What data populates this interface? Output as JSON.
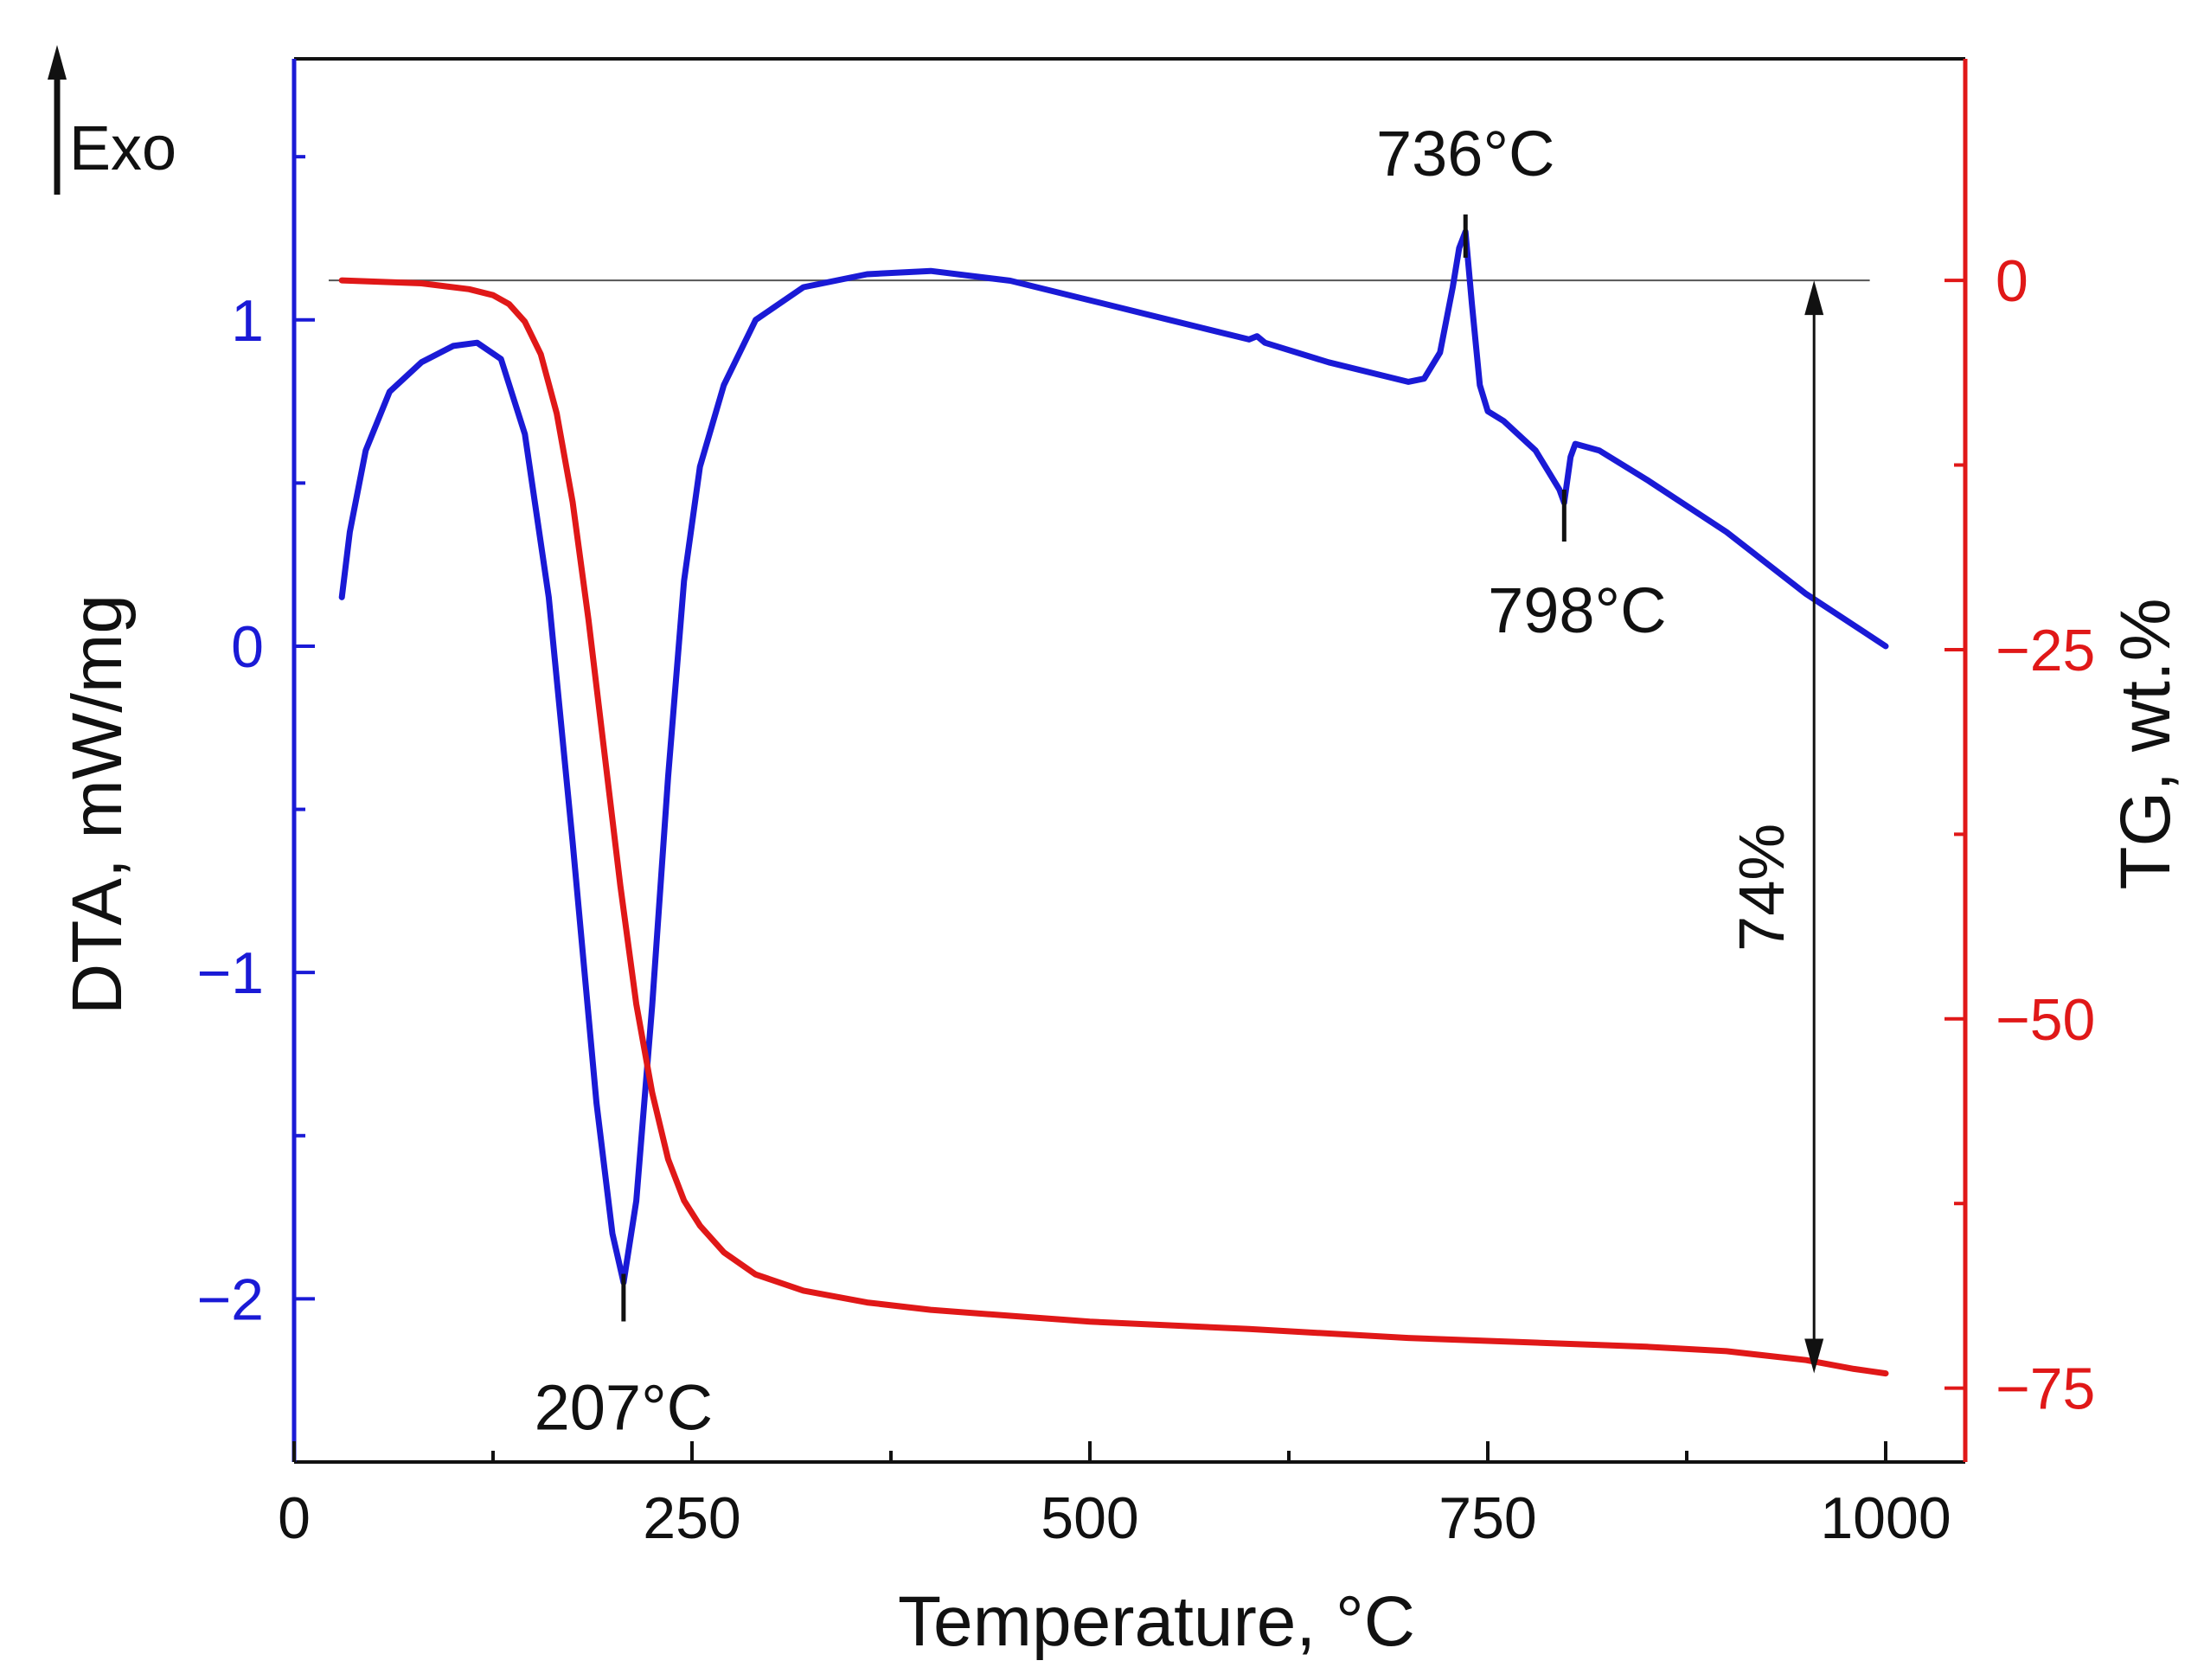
{
  "chart_data": {
    "type": "line",
    "title": "",
    "xlabel": "Temperature, °C",
    "ylabel_left": "DTA, mW/mg",
    "ylabel_right": "TG, wt.%",
    "xlim": [
      0,
      1050
    ],
    "ylim_left": [
      -2.5,
      1.8
    ],
    "ylim_right": [
      -80,
      15
    ],
    "x_ticks": [
      0,
      250,
      500,
      750,
      1000
    ],
    "x_minor_ticks": [
      125,
      375,
      625,
      875
    ],
    "y_left_ticks": [
      -2,
      -1,
      0,
      1
    ],
    "y_left_tick_labels": [
      "−2",
      "−1",
      "0",
      "1"
    ],
    "y_left_minor_ticks": [
      -1.5,
      -0.5,
      0.5,
      1.5
    ],
    "y_right_ticks": [
      0,
      -25,
      -50,
      -75
    ],
    "y_right_tick_labels": [
      "0",
      "−25",
      "−50",
      "−75"
    ],
    "y_right_minor_ticks": [
      -12.5,
      -37.5,
      -62.5
    ],
    "grid": false,
    "colors": {
      "dta": "#1a1ad6",
      "tg": "#e01818",
      "annotation": "#111111"
    },
    "exo_label": "Exo",
    "series": [
      {
        "name": "DTA",
        "axis": "left",
        "color": "#1a1ad6",
        "x": [
          30,
          35,
          45,
          60,
          80,
          100,
          115,
          130,
          145,
          160,
          175,
          190,
          200,
          207,
          215,
          225,
          235,
          245,
          255,
          270,
          290,
          320,
          360,
          400,
          450,
          500,
          550,
          600,
          605,
          610,
          650,
          700,
          710,
          720,
          728,
          732,
          736,
          740,
          745,
          750,
          760,
          780,
          790,
          795,
          798,
          802,
          805,
          820,
          850,
          900,
          950,
          1000
        ],
        "values": [
          0.15,
          0.35,
          0.6,
          0.78,
          0.87,
          0.92,
          0.93,
          0.88,
          0.65,
          0.15,
          -0.6,
          -1.4,
          -1.8,
          -1.95,
          -1.7,
          -1.1,
          -0.4,
          0.2,
          0.55,
          0.8,
          1.0,
          1.1,
          1.14,
          1.15,
          1.12,
          1.06,
          1.0,
          0.94,
          0.95,
          0.93,
          0.87,
          0.81,
          0.82,
          0.9,
          1.1,
          1.22,
          1.27,
          1.05,
          0.8,
          0.72,
          0.69,
          0.6,
          0.52,
          0.48,
          0.44,
          0.58,
          0.62,
          0.6,
          0.51,
          0.35,
          0.16,
          0.0
        ]
      },
      {
        "name": "TG",
        "axis": "right",
        "color": "#e01818",
        "x": [
          30,
          80,
          110,
          125,
          135,
          145,
          155,
          165,
          175,
          185,
          195,
          205,
          215,
          225,
          235,
          245,
          255,
          270,
          290,
          320,
          360,
          400,
          450,
          500,
          600,
          700,
          800,
          850,
          900,
          950,
          980,
          1000
        ],
        "values": [
          0,
          -0.2,
          -0.6,
          -1.0,
          -1.6,
          -2.8,
          -5.0,
          -9.0,
          -15.0,
          -23.0,
          -32.0,
          -41.0,
          -49.0,
          -55.0,
          -59.5,
          -62.3,
          -64.0,
          -65.8,
          -67.3,
          -68.4,
          -69.2,
          -69.7,
          -70.1,
          -70.5,
          -71.0,
          -71.6,
          -72.0,
          -72.2,
          -72.5,
          -73.1,
          -73.7,
          -74.0
        ]
      }
    ],
    "annotations": [
      {
        "label": "207°C",
        "x": 207,
        "dta_value": -1.95
      },
      {
        "label": "736°C",
        "x": 736,
        "dta_value": 1.27
      },
      {
        "label": "798°C",
        "x": 798,
        "dta_value": 0.44
      },
      {
        "label": "74%",
        "x": 955,
        "tg_from": 0,
        "tg_to": -74
      }
    ]
  }
}
